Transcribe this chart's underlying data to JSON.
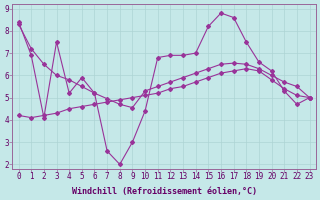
{
  "xlabel": "Windchill (Refroidissement éolien,°C)",
  "background_color": "#c5e8e8",
  "line_color": "#993399",
  "grid_color": "#aed4d4",
  "xlim": [
    -0.5,
    23.5
  ],
  "ylim": [
    1.8,
    9.2
  ],
  "yticks": [
    2,
    3,
    4,
    5,
    6,
    7,
    8,
    9
  ],
  "xticks": [
    0,
    1,
    2,
    3,
    4,
    5,
    6,
    7,
    8,
    9,
    10,
    11,
    12,
    13,
    14,
    15,
    16,
    17,
    18,
    19,
    20,
    21,
    22,
    23
  ],
  "series1": [
    8.4,
    6.9,
    4.1,
    7.5,
    5.2,
    5.9,
    5.2,
    2.6,
    2.0,
    3.0,
    4.4,
    6.8,
    6.9,
    6.9,
    7.0,
    8.2,
    8.8,
    8.6,
    7.5,
    6.6,
    6.2,
    5.3,
    4.7,
    5.0
  ],
  "series2": [
    4.2,
    4.1,
    4.2,
    4.3,
    4.5,
    4.6,
    4.7,
    4.8,
    4.9,
    5.0,
    5.1,
    5.2,
    5.4,
    5.5,
    5.7,
    5.9,
    6.1,
    6.2,
    6.3,
    6.2,
    5.8,
    5.4,
    5.1,
    5.0
  ],
  "series3": [
    8.3,
    7.2,
    6.5,
    6.0,
    5.8,
    5.5,
    5.2,
    4.95,
    4.7,
    4.55,
    5.3,
    5.5,
    5.7,
    5.9,
    6.1,
    6.3,
    6.5,
    6.55,
    6.5,
    6.3,
    6.0,
    5.7,
    5.5,
    5.0
  ],
  "tick_fontsize": 5.5,
  "xlabel_fontsize": 6.0,
  "marker": "D",
  "markersize": 2.0,
  "linewidth": 0.8
}
